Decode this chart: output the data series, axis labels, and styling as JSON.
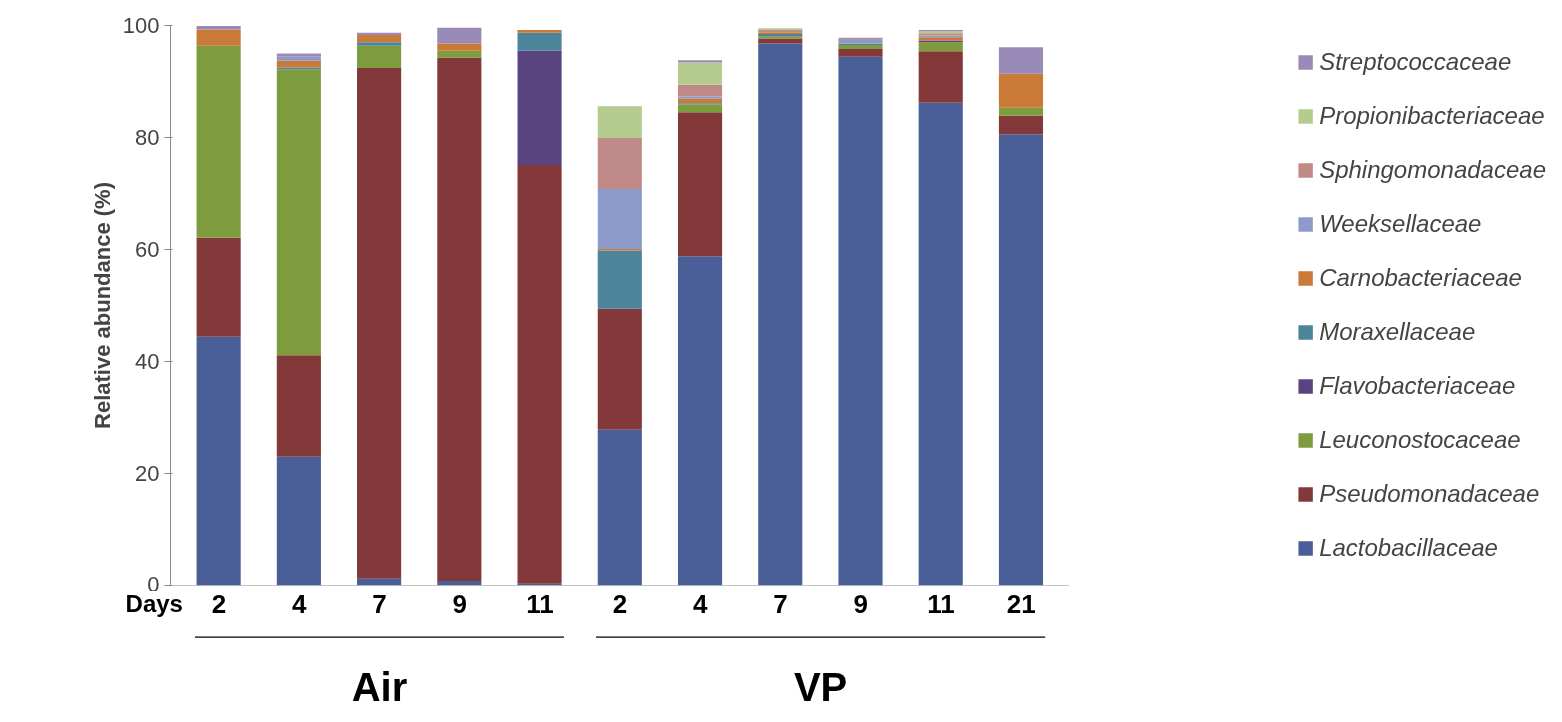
{
  "chart_data": {
    "type": "bar",
    "stacked": true,
    "ylabel": "Relative abundance (%)",
    "xlabel": "Days",
    "categories": [
      "2",
      "4",
      "7",
      "9",
      "11",
      "2",
      "4",
      "7",
      "9",
      "11",
      "21"
    ],
    "ylim": [
      0,
      100
    ],
    "yticks": [
      0,
      20,
      40,
      60,
      80,
      100
    ],
    "grid": false,
    "legend": "right",
    "annotations": [
      "Air",
      "VP"
    ],
    "series": [
      {
        "name": "Lactobacillaceae",
        "color": "#4a5f98",
        "values": [
          44.4,
          23.0,
          1.2,
          0.8,
          0.3,
          27.8,
          58.8,
          96.8,
          94.4,
          86.2,
          80.6
        ]
      },
      {
        "name": "Pseudomonadaceae",
        "color": "#833939",
        "values": [
          17.7,
          18.1,
          91.2,
          93.5,
          74.8,
          21.6,
          25.7,
          0.9,
          1.4,
          9.2,
          3.3
        ]
      },
      {
        "name": "Leuconostocaceae",
        "color": "#7e9c3e",
        "values": [
          34.3,
          51.1,
          4.0,
          1.2,
          0,
          0,
          1.4,
          0.4,
          0.7,
          1.6,
          1.4
        ]
      },
      {
        "name": "Flavobacteriaceae",
        "color": "#5a4480",
        "values": [
          0,
          0,
          0,
          0,
          20.4,
          0,
          0,
          0,
          0,
          0.3,
          0
        ]
      },
      {
        "name": "Moraxellaceae",
        "color": "#4b849b",
        "values": [
          0,
          0.3,
          0.6,
          0,
          3.2,
          10.4,
          0.2,
          0.4,
          0.3,
          0,
          0
        ]
      },
      {
        "name": "Carnobacteriaceae",
        "color": "#c97a37",
        "values": [
          2.9,
          1.2,
          1.3,
          1.3,
          0.5,
          0.3,
          0.8,
          0.3,
          0,
          0.6,
          6.1
        ]
      },
      {
        "name": "Weeksellaceae",
        "color": "#8c9bca",
        "values": [
          0,
          0.7,
          0,
          0,
          0,
          10.7,
          0.4,
          0,
          0.8,
          0.3,
          0
        ]
      },
      {
        "name": "Sphingomonadaceae",
        "color": "#c08a88",
        "values": [
          0,
          0,
          0,
          0,
          0,
          9.1,
          2.1,
          0.4,
          0.2,
          0.4,
          0
        ]
      },
      {
        "name": "Propionibacteriaceae",
        "color": "#b5cc8f",
        "values": [
          0,
          0,
          0,
          0,
          0,
          5.7,
          4.0,
          0.3,
          0,
          0.4,
          0
        ]
      },
      {
        "name": "Streptococcaceae",
        "color": "#9a8ab7",
        "values": [
          0.6,
          0.6,
          0.4,
          2.8,
          0,
          0,
          0.4,
          0,
          0,
          0.2,
          4.7
        ]
      }
    ]
  }
}
